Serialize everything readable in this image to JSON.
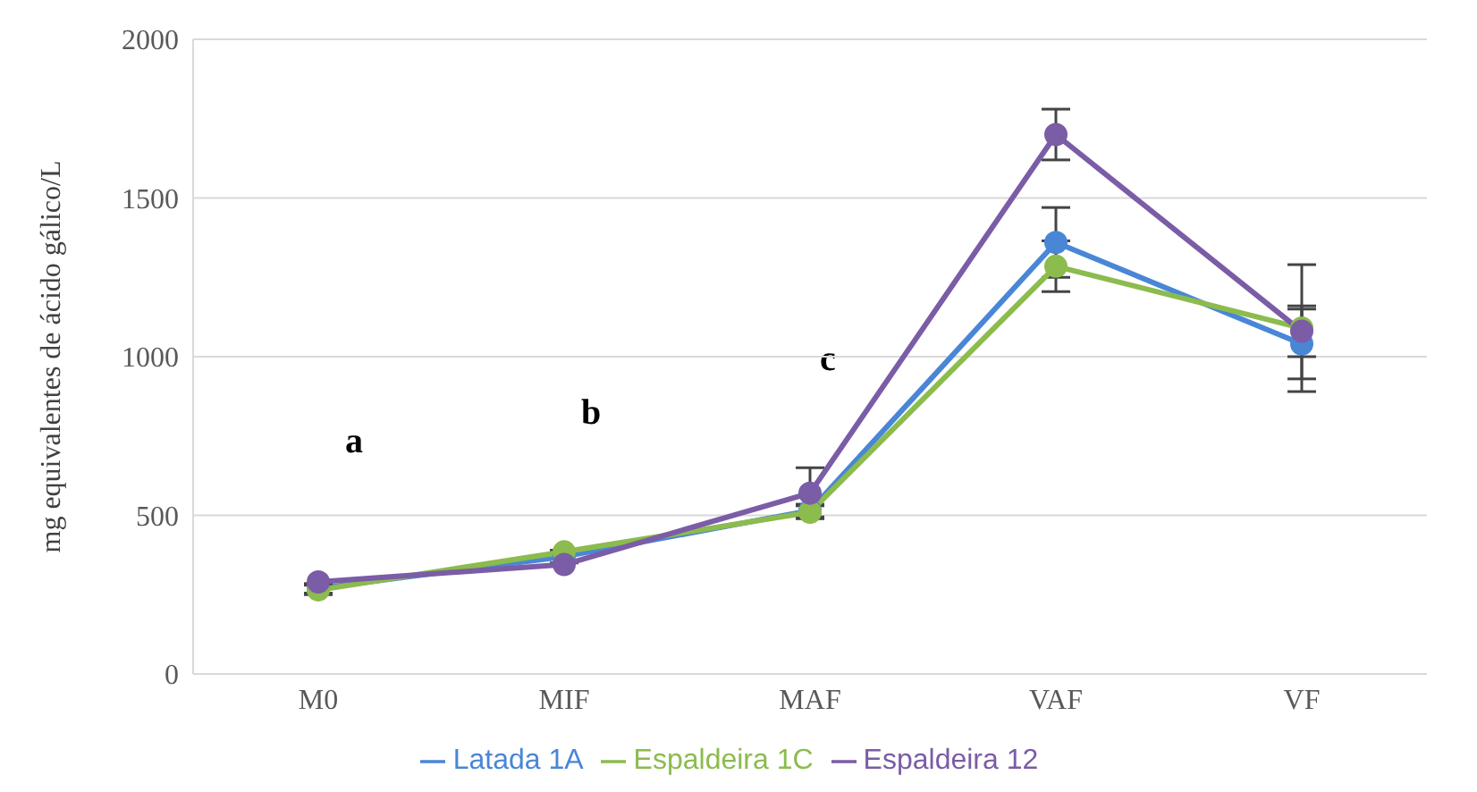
{
  "chart_data": {
    "type": "line",
    "ylabel": "mg equivalentes de ácido gálico/L",
    "categories": [
      "M0",
      "MIF",
      "MAF",
      "VAF",
      "VF"
    ],
    "series": [
      {
        "name": "Latada 1A",
        "color": "#4a86d6",
        "values": [
          270,
          370,
          515,
          1360,
          1040
        ],
        "errors": [
          15,
          20,
          20,
          110,
          110
        ]
      },
      {
        "name": "Espaldeira 1C",
        "color": "#8cbb4e",
        "values": [
          265,
          385,
          510,
          1285,
          1090
        ],
        "errors": [
          15,
          null,
          20,
          80,
          200
        ]
      },
      {
        "name": "Espaldeira 12",
        "color": "#7b5ca6",
        "values": [
          290,
          345,
          570,
          1700,
          1080
        ],
        "errors": [
          null,
          null,
          80,
          80,
          80
        ]
      }
    ],
    "ylim": [
      0,
      2000
    ],
    "yticks": [
      0,
      500,
      1000,
      1500,
      2000
    ],
    "grid": "y",
    "legend": "bottom",
    "marker": "circle",
    "annotations": [
      "a",
      "b",
      "c"
    ]
  }
}
